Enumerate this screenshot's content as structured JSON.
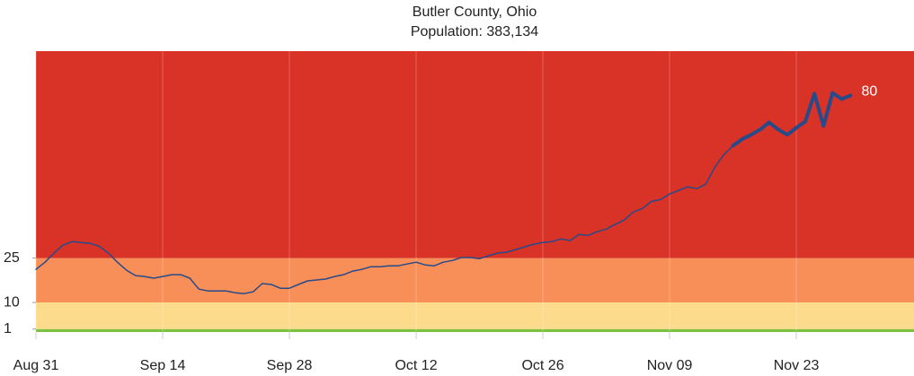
{
  "chart_data": {
    "type": "line",
    "title": "Butler County, Ohio",
    "subtitle": "Population: 383,134",
    "x": [
      "Aug 31",
      "Sep 01",
      "Sep 02",
      "Sep 03",
      "Sep 04",
      "Sep 05",
      "Sep 06",
      "Sep 07",
      "Sep 08",
      "Sep 09",
      "Sep 10",
      "Sep 11",
      "Sep 12",
      "Sep 13",
      "Sep 14",
      "Sep 15",
      "Sep 16",
      "Sep 17",
      "Sep 18",
      "Sep 19",
      "Sep 20",
      "Sep 21",
      "Sep 22",
      "Sep 23",
      "Sep 24",
      "Sep 25",
      "Sep 26",
      "Sep 27",
      "Sep 28",
      "Sep 29",
      "Sep 30",
      "Oct 01",
      "Oct 02",
      "Oct 03",
      "Oct 04",
      "Oct 05",
      "Oct 06",
      "Oct 07",
      "Oct 08",
      "Oct 09",
      "Oct 10",
      "Oct 11",
      "Oct 12",
      "Oct 13",
      "Oct 14",
      "Oct 15",
      "Oct 16",
      "Oct 17",
      "Oct 18",
      "Oct 19",
      "Oct 20",
      "Oct 21",
      "Oct 22",
      "Oct 23",
      "Oct 24",
      "Oct 25",
      "Oct 26",
      "Oct 27",
      "Oct 28",
      "Oct 29",
      "Oct 30",
      "Oct 31",
      "Nov 01",
      "Nov 02",
      "Nov 03",
      "Nov 04",
      "Nov 05",
      "Nov 06",
      "Nov 07",
      "Nov 08",
      "Nov 09",
      "Nov 10",
      "Nov 11",
      "Nov 12",
      "Nov 13",
      "Nov 14",
      "Nov 15",
      "Nov 16",
      "Nov 17",
      "Nov 18",
      "Nov 19",
      "Nov 20",
      "Nov 21",
      "Nov 22",
      "Nov 23",
      "Nov 24",
      "Nov 25",
      "Nov 26",
      "Nov 27",
      "Nov 28",
      "Nov 29"
    ],
    "series": [
      {
        "color": "#274a8a",
        "width": 1.5,
        "values": [
          21.2,
          23.6,
          26.7,
          29.4,
          30.6,
          30.3,
          30,
          29,
          26.7,
          23.6,
          20.9,
          19.1,
          18.8,
          18.2,
          18.8,
          19.4,
          19.4,
          18.2,
          14.5,
          13.9,
          13.9,
          13.9,
          13.3,
          13,
          13.6,
          16.4,
          16.1,
          14.8,
          14.8,
          16.1,
          17.3,
          17.6,
          17.9,
          18.8,
          19.4,
          20.6,
          21.2,
          22.1,
          22.1,
          22.4,
          22.4,
          23,
          23.6,
          22.7,
          22.4,
          23.6,
          24.2,
          25.2,
          25.2,
          24.8,
          25.8,
          26.7,
          27,
          27.9,
          28.8,
          29.7,
          30.3,
          30.6,
          31.5,
          30.9,
          33,
          32.7,
          33.9,
          34.8,
          36.4,
          37.9,
          40.6,
          41.8,
          44.2,
          44.8,
          46.7,
          47.9,
          49.1,
          48.5,
          50,
          55.8,
          60,
          63,
          null,
          null,
          null,
          null,
          null,
          null,
          null,
          null,
          null,
          null,
          null,
          null,
          null
        ]
      },
      {
        "color": "#274a8a",
        "width": 4,
        "values": [
          null,
          null,
          null,
          null,
          null,
          null,
          null,
          null,
          null,
          null,
          null,
          null,
          null,
          null,
          null,
          null,
          null,
          null,
          null,
          null,
          null,
          null,
          null,
          null,
          null,
          null,
          null,
          null,
          null,
          null,
          null,
          null,
          null,
          null,
          null,
          null,
          null,
          null,
          null,
          null,
          null,
          null,
          null,
          null,
          null,
          null,
          null,
          null,
          null,
          null,
          null,
          null,
          null,
          null,
          null,
          null,
          null,
          null,
          null,
          null,
          null,
          null,
          null,
          null,
          null,
          null,
          null,
          null,
          null,
          null,
          null,
          null,
          null,
          null,
          null,
          null,
          null,
          63,
          65.2,
          66.7,
          68.5,
          70.9,
          68.5,
          66.7,
          69.1,
          71.2,
          80.6,
          69.7,
          80.9,
          78.8,
          80
        ]
      }
    ],
    "xlim": [
      "Aug 31",
      "Dec 06"
    ],
    "xticks": [
      "Aug 31",
      "Sep 14",
      "Sep 28",
      "Oct 12",
      "Oct 26",
      "Nov 09",
      "Nov 23"
    ],
    "ylim": [
      0,
      95
    ],
    "yticks": [
      1,
      10,
      25
    ],
    "bands": [
      {
        "from": 0,
        "to": 1,
        "color": "#7cc242"
      },
      {
        "from": 1,
        "to": 10,
        "color": "#fcdc8c"
      },
      {
        "from": 10,
        "to": 25,
        "color": "#f88f58"
      },
      {
        "from": 25,
        "to": 95,
        "color": "#d93226"
      }
    ],
    "grid": true,
    "end_label_color": "#ffffff"
  }
}
